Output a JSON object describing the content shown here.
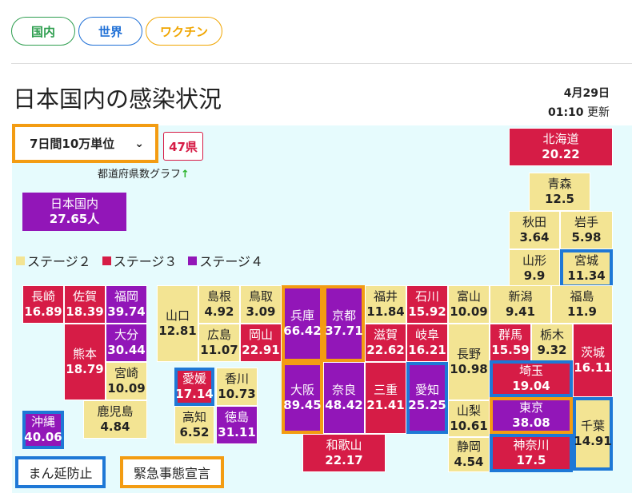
{
  "tabs": [
    {
      "label": "国内",
      "color": "#2e9e4f"
    },
    {
      "label": "世界",
      "color": "#1e6fd6"
    },
    {
      "label": "ワクチン",
      "color": "#f0a500"
    }
  ],
  "header": {
    "title": "日本国内の感染状況",
    "date": "4月29日",
    "time": "01:10",
    "updated_label": "更新"
  },
  "controls": {
    "unit_select": "7日間10万単位",
    "count_badge": "47県",
    "graph_link": "都道府県数グラフ",
    "graph_arrow": "↑"
  },
  "national": {
    "label": "日本国内",
    "value": "27.65人"
  },
  "legend": [
    {
      "label": "ステージ２",
      "color": "#f3e493"
    },
    {
      "label": "ステージ３",
      "color": "#d61c46"
    },
    {
      "label": "ステージ４",
      "color": "#9216b8"
    }
  ],
  "key": {
    "manbou": "まん延防止",
    "emergency": "緊急事態宣言",
    "manbou_color": "#1e78d6",
    "emergency_color": "#f39c12"
  },
  "prefectures": [
    {
      "name": "北海道",
      "value": "20.22",
      "stage": 3,
      "measure": ""
    },
    {
      "name": "青森",
      "value": "12.5",
      "stage": 2,
      "measure": ""
    },
    {
      "name": "秋田",
      "value": "3.64",
      "stage": 2,
      "measure": ""
    },
    {
      "name": "岩手",
      "value": "5.98",
      "stage": 2,
      "measure": ""
    },
    {
      "name": "山形",
      "value": "9.9",
      "stage": 2,
      "measure": ""
    },
    {
      "name": "宮城",
      "value": "11.34",
      "stage": 2,
      "measure": "manbou"
    },
    {
      "name": "長崎",
      "value": "16.89",
      "stage": 3,
      "measure": ""
    },
    {
      "name": "佐賀",
      "value": "18.39",
      "stage": 3,
      "measure": ""
    },
    {
      "name": "福岡",
      "value": "39.74",
      "stage": 4,
      "measure": ""
    },
    {
      "name": "山口",
      "value": "12.81",
      "stage": 2,
      "measure": ""
    },
    {
      "name": "島根",
      "value": "4.92",
      "stage": 2,
      "measure": ""
    },
    {
      "name": "鳥取",
      "value": "3.09",
      "stage": 2,
      "measure": ""
    },
    {
      "name": "兵庫",
      "value": "66.42",
      "stage": 4,
      "measure": "emergency"
    },
    {
      "name": "京都",
      "value": "37.71",
      "stage": 4,
      "measure": "emergency"
    },
    {
      "name": "福井",
      "value": "11.84",
      "stage": 2,
      "measure": ""
    },
    {
      "name": "石川",
      "value": "15.92",
      "stage": 3,
      "measure": ""
    },
    {
      "name": "富山",
      "value": "10.09",
      "stage": 2,
      "measure": ""
    },
    {
      "name": "新潟",
      "value": "9.41",
      "stage": 2,
      "measure": ""
    },
    {
      "name": "福島",
      "value": "11.9",
      "stage": 2,
      "measure": ""
    },
    {
      "name": "大分",
      "value": "30.44",
      "stage": 4,
      "measure": ""
    },
    {
      "name": "熊本",
      "value": "18.79",
      "stage": 3,
      "measure": ""
    },
    {
      "name": "広島",
      "value": "11.07",
      "stage": 2,
      "measure": ""
    },
    {
      "name": "岡山",
      "value": "22.91",
      "stage": 3,
      "measure": ""
    },
    {
      "name": "滋賀",
      "value": "22.62",
      "stage": 3,
      "measure": ""
    },
    {
      "name": "岐阜",
      "value": "16.21",
      "stage": 3,
      "measure": ""
    },
    {
      "name": "長野",
      "value": "10.98",
      "stage": 2,
      "measure": ""
    },
    {
      "name": "群馬",
      "value": "15.59",
      "stage": 3,
      "measure": ""
    },
    {
      "name": "栃木",
      "value": "9.32",
      "stage": 2,
      "measure": ""
    },
    {
      "name": "茨城",
      "value": "16.11",
      "stage": 3,
      "measure": ""
    },
    {
      "name": "宮崎",
      "value": "10.09",
      "stage": 2,
      "measure": ""
    },
    {
      "name": "愛媛",
      "value": "17.14",
      "stage": 3,
      "measure": "manbou"
    },
    {
      "name": "香川",
      "value": "10.73",
      "stage": 2,
      "measure": ""
    },
    {
      "name": "大阪",
      "value": "89.45",
      "stage": 4,
      "measure": "emergency"
    },
    {
      "name": "奈良",
      "value": "48.42",
      "stage": 4,
      "measure": ""
    },
    {
      "name": "三重",
      "value": "21.41",
      "stage": 3,
      "measure": ""
    },
    {
      "name": "愛知",
      "value": "25.25",
      "stage": 4,
      "measure": "manbou"
    },
    {
      "name": "埼玉",
      "value": "19.04",
      "stage": 3,
      "measure": "manbou"
    },
    {
      "name": "鹿児島",
      "value": "4.84",
      "stage": 2,
      "measure": ""
    },
    {
      "name": "高知",
      "value": "6.52",
      "stage": 2,
      "measure": ""
    },
    {
      "name": "徳島",
      "value": "31.11",
      "stage": 4,
      "measure": ""
    },
    {
      "name": "山梨",
      "value": "10.61",
      "stage": 2,
      "measure": ""
    },
    {
      "name": "東京",
      "value": "38.08",
      "stage": 4,
      "measure": "emergency"
    },
    {
      "name": "千葉",
      "value": "14.91",
      "stage": 2,
      "measure": "manbou"
    },
    {
      "name": "沖縄",
      "value": "40.06",
      "stage": 4,
      "measure": "manbou"
    },
    {
      "name": "和歌山",
      "value": "22.17",
      "stage": 3,
      "measure": ""
    },
    {
      "name": "静岡",
      "value": "4.54",
      "stage": 2,
      "measure": ""
    },
    {
      "name": "神奈川",
      "value": "17.5",
      "stage": 3,
      "measure": "manbou"
    }
  ]
}
